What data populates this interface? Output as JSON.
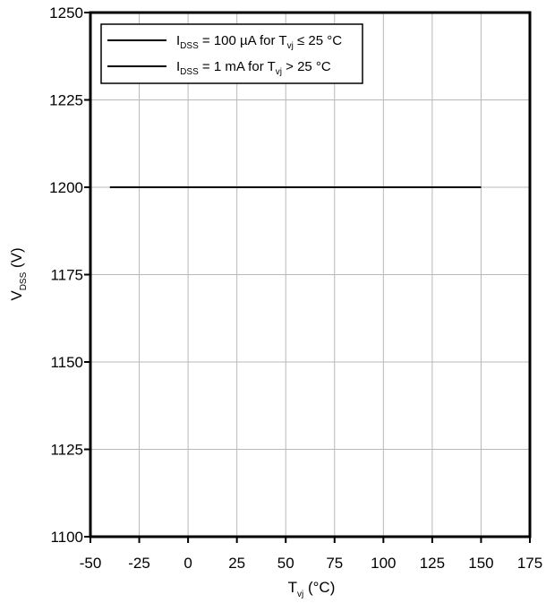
{
  "chart_data": {
    "type": "line",
    "title": "",
    "xlim": [
      -50,
      175
    ],
    "ylim": [
      1100,
      1250
    ],
    "x_ticks": [
      -50,
      -25,
      0,
      25,
      50,
      75,
      100,
      125,
      150,
      175
    ],
    "y_ticks": [
      1100,
      1125,
      1150,
      1175,
      1200,
      1225,
      1250
    ],
    "x_tick_labels": [
      "-50",
      "-25",
      "0",
      "25",
      "50",
      "75",
      "100",
      "125",
      "150",
      "175"
    ],
    "y_tick_labels": [
      "1100",
      "1125",
      "1150",
      "1175",
      "1200",
      "1225",
      "1250"
    ],
    "xlabel": {
      "main": "T",
      "sub": "vj",
      "unit": " (°C)"
    },
    "ylabel": {
      "main": "V",
      "sub": "DSS",
      "unit": " (V)"
    },
    "grid": true,
    "legend_position": "top-left",
    "series": [
      {
        "name": "IDSS = 100 µA for Tvj ≤ 25 °C",
        "legend": {
          "p1": "I",
          "s1": "DSS",
          "p2": " = 100 µA for T",
          "s2": "vj",
          "p3": " ≤ 25 °C"
        },
        "color": "#000000",
        "x": [
          -40,
          25
        ],
        "y": [
          1200,
          1200
        ]
      },
      {
        "name": "IDSS = 1 mA for Tvj > 25 °C",
        "legend": {
          "p1": "I",
          "s1": "DSS",
          "p2": " = 1 mA for T",
          "s2": "vj",
          "p3": " > 25 °C"
        },
        "color": "#000000",
        "x": [
          25,
          150
        ],
        "y": [
          1200,
          1200
        ]
      }
    ]
  }
}
